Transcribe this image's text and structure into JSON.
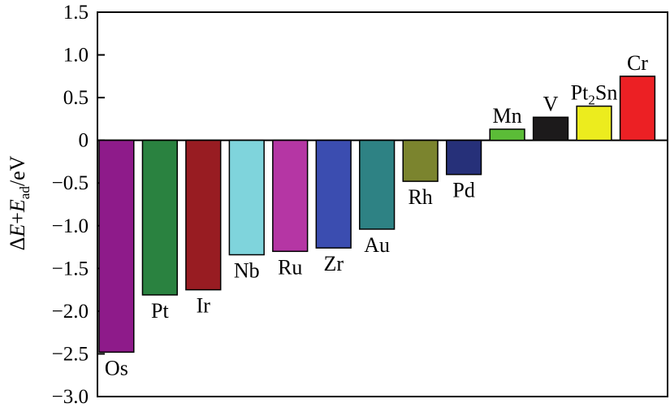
{
  "chart_data": {
    "type": "bar",
    "title": "",
    "xlabel": "",
    "ylabel": "ΔE+E_ad/eV",
    "ylabel_parts": {
      "delta": "Δ",
      "e1": "E",
      "plus": "+",
      "e2": "E",
      "sub": "ad",
      "unit": "/eV"
    },
    "ylim": [
      -3.0,
      1.5
    ],
    "yticks": [
      1.5,
      1.0,
      0.5,
      0,
      -0.5,
      -1.0,
      -1.5,
      -2.0,
      -2.5,
      -3.0
    ],
    "ytick_labels": [
      "1.5",
      "1.0",
      "0.5",
      "0",
      "−0.5",
      "−1.0",
      "−1.5",
      "−2.0",
      "−2.5",
      "−3.0"
    ],
    "grid": false,
    "legend": "none",
    "categories": [
      "Os",
      "Pt",
      "Ir",
      "Nb",
      "Ru",
      "Zr",
      "Au",
      "Rh",
      "Pd",
      "Mn",
      "V",
      "Pt2Sn",
      "Cr"
    ],
    "values": [
      -2.48,
      -1.81,
      -1.75,
      -1.34,
      -1.3,
      -1.26,
      -1.04,
      -0.48,
      -0.4,
      0.13,
      0.27,
      0.4,
      0.75
    ],
    "label_parts": [
      [
        "Os"
      ],
      [
        "Pt"
      ],
      [
        "Ir"
      ],
      [
        "Nb"
      ],
      [
        "Ru"
      ],
      [
        "Zr"
      ],
      [
        "Au"
      ],
      [
        "Rh"
      ],
      [
        "Pd"
      ],
      [
        "Mn"
      ],
      [
        "V"
      ],
      [
        "Pt",
        "2",
        "Sn"
      ],
      [
        "Cr"
      ]
    ],
    "colors": [
      "#8e1b8a",
      "#2a8240",
      "#981c22",
      "#7fd4dc",
      "#b536a4",
      "#3b4db0",
      "#2e8284",
      "#7b842e",
      "#263079",
      "#5bbc37",
      "#1c1a1b",
      "#ecec1e",
      "#ec2024"
    ]
  }
}
